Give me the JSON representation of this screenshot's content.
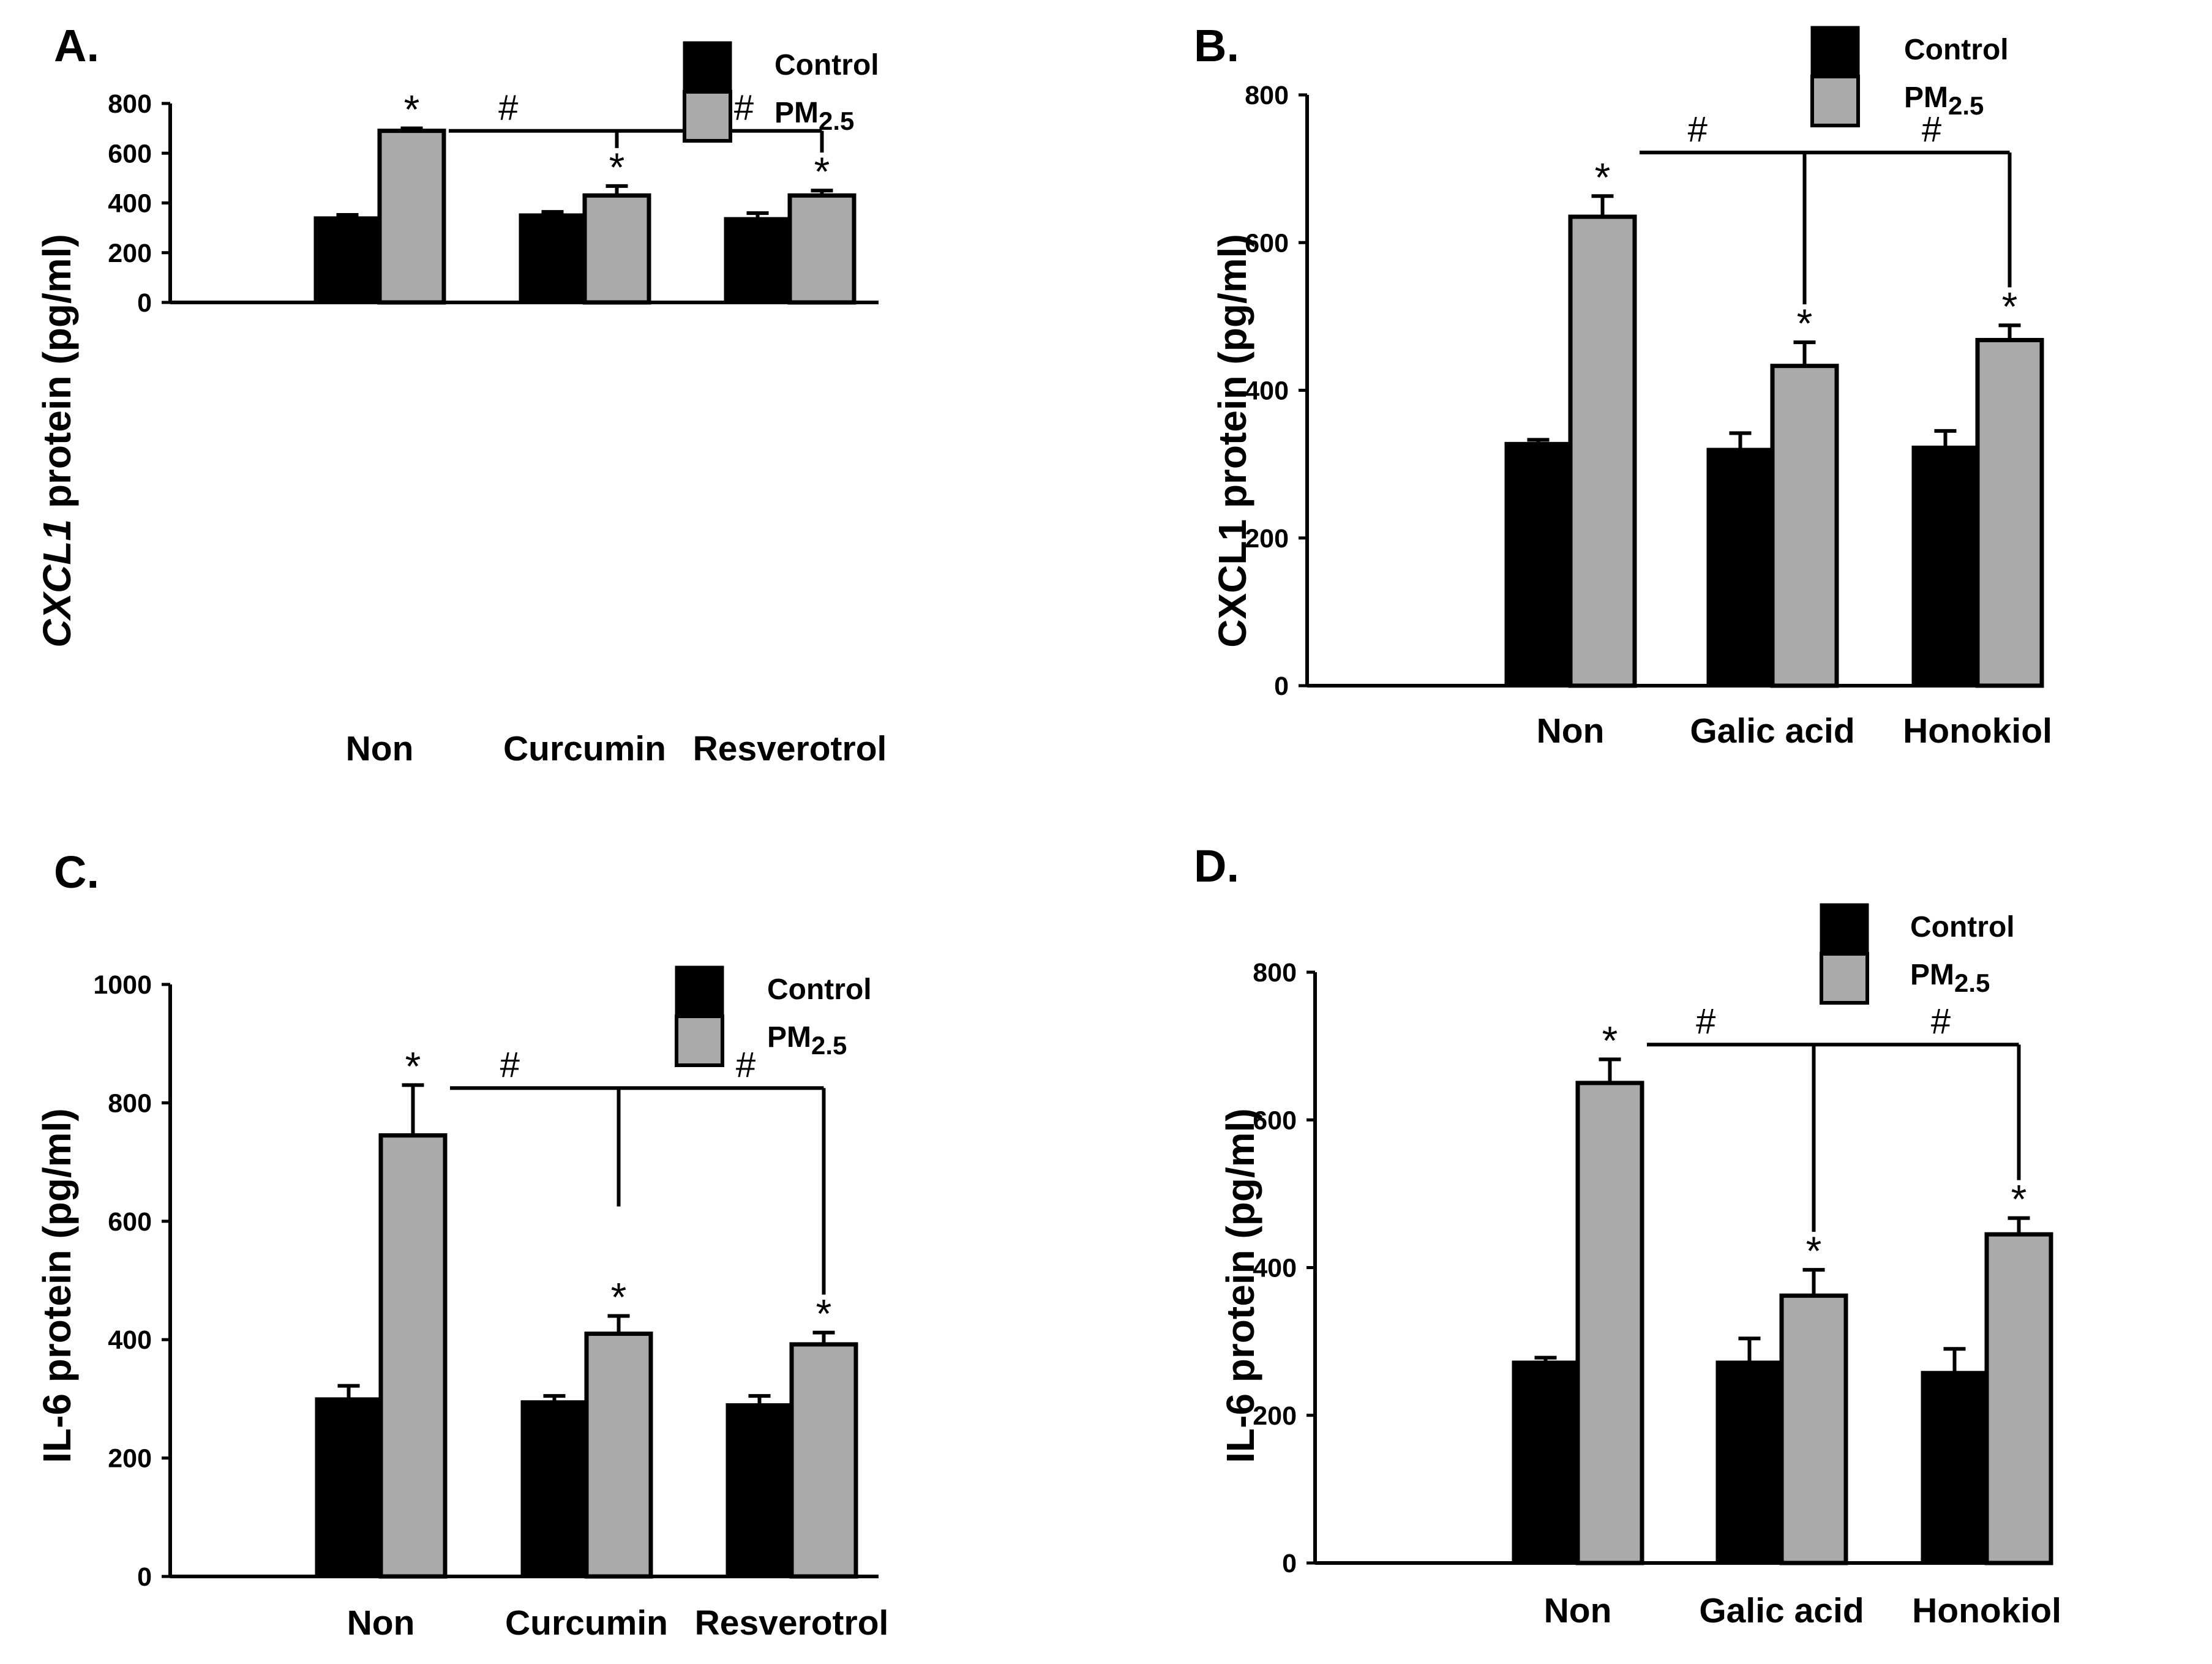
{
  "colors": {
    "control": "#000000",
    "pm25": "#aaaaaa",
    "axis": "#000000"
  },
  "chart_data": [
    {
      "panel_label": "A.",
      "type": "bar",
      "ylabel_italic": "CXCL1",
      "ylabel_rest": " protein (pg/ml)",
      "categories": [
        "Non",
        "Curcumin",
        "Resverotrol"
      ],
      "ylim": [
        0,
        800
      ],
      "yticks": [
        "0",
        "200",
        "400",
        "600",
        "800"
      ],
      "legend": {
        "control": "Control",
        "pm_prefix": "PM",
        "pm_sub": "2.5"
      },
      "series": [
        {
          "name": "Control",
          "values": [
            340,
            352,
            337
          ],
          "errors": [
            12,
            12,
            22
          ]
        },
        {
          "name": "PM2.5",
          "values": [
            690,
            430,
            430
          ],
          "errors": [
            10,
            38,
            20
          ]
        }
      ],
      "significance": [
        {
          "category": "Non",
          "series": "PM2.5",
          "mark": "*"
        },
        {
          "category": "Curcumin",
          "series": "PM2.5",
          "mark": "*"
        },
        {
          "category": "Resverotrol",
          "series": "PM2.5",
          "mark": "*"
        }
      ],
      "comparison": {
        "from": "Non",
        "to": [
          "Curcumin",
          "Resverotrol"
        ],
        "mark": "#",
        "y": 690
      }
    },
    {
      "panel_label": "B.",
      "type": "bar",
      "ylabel_italic": "",
      "ylabel_rest": "CXCL1 protein (pg/ml)",
      "categories": [
        "Non",
        "Galic acid",
        "Honokiol"
      ],
      "ylim": [
        0,
        800
      ],
      "yticks": [
        "0",
        "200",
        "400",
        "600",
        "800"
      ],
      "legend": {
        "control": "Control",
        "pm_prefix": "PM",
        "pm_sub": "2.5"
      },
      "series": [
        {
          "name": "Control",
          "values": [
            328,
            320,
            323
          ],
          "errors": [
            5,
            22,
            22
          ]
        },
        {
          "name": "PM2.5",
          "values": [
            635,
            433,
            468
          ],
          "errors": [
            28,
            32,
            20
          ]
        }
      ],
      "significance": [
        {
          "category": "Non",
          "series": "PM2.5",
          "mark": "*"
        },
        {
          "category": "Galic acid",
          "series": "PM2.5",
          "mark": "*"
        },
        {
          "category": "Honokiol",
          "series": "PM2.5",
          "mark": "*"
        }
      ],
      "comparison": {
        "from": "Non",
        "to": [
          "Galic acid",
          "Honokiol"
        ],
        "mark": "#",
        "y": 722
      }
    },
    {
      "panel_label": "C.",
      "type": "bar",
      "ylabel_italic": "",
      "ylabel_rest": "IL-6 protein (pg/ml)",
      "categories": [
        "Non",
        "Curcumin",
        "Resverotrol"
      ],
      "ylim": [
        0,
        1000
      ],
      "yticks": [
        "0",
        "200",
        "400",
        "600",
        "800",
        "1000"
      ],
      "legend": {
        "control": "Control",
        "pm_prefix": "PM",
        "pm_sub": "2.5"
      },
      "series": [
        {
          "name": "Control",
          "values": [
            300,
            295,
            290
          ],
          "errors": [
            22,
            10,
            15
          ]
        },
        {
          "name": "PM2.5",
          "values": [
            745,
            410,
            392
          ],
          "errors": [
            85,
            30,
            20
          ]
        }
      ],
      "significance": [
        {
          "category": "Non",
          "series": "PM2.5",
          "mark": "*"
        },
        {
          "category": "Curcumin",
          "series": "PM2.5",
          "mark": "*"
        },
        {
          "category": "Resverotrol",
          "series": "PM2.5",
          "mark": "*"
        }
      ],
      "comparison": {
        "from": "Non",
        "to": [
          "Curcumin",
          "Resverotrol"
        ],
        "mark": "#",
        "y": 825,
        "first_leg_end": 625
      }
    },
    {
      "panel_label": "D.",
      "type": "bar",
      "ylabel_italic": "",
      "ylabel_rest": "IL-6 protein (pg/ml)",
      "categories": [
        "Non",
        "Galic acid",
        "Honokiol"
      ],
      "ylim": [
        0,
        800
      ],
      "yticks": [
        "0",
        "200",
        "400",
        "600",
        "800"
      ],
      "legend": {
        "control": "Control",
        "pm_prefix": "PM",
        "pm_sub": "2.5"
      },
      "series": [
        {
          "name": "Control",
          "values": [
            272,
            272,
            258
          ],
          "errors": [
            6,
            32,
            32
          ]
        },
        {
          "name": "PM2.5",
          "values": [
            650,
            362,
            445
          ],
          "errors": [
            32,
            35,
            22
          ]
        }
      ],
      "significance": [
        {
          "category": "Non",
          "series": "PM2.5",
          "mark": "*"
        },
        {
          "category": "Galic acid",
          "series": "PM2.5",
          "mark": "*"
        },
        {
          "category": "Honokiol",
          "series": "PM2.5",
          "mark": "*"
        }
      ],
      "comparison": {
        "from": "Non",
        "to": [
          "Galic acid",
          "Honokiol"
        ],
        "mark": "#",
        "y": 702
      }
    }
  ]
}
